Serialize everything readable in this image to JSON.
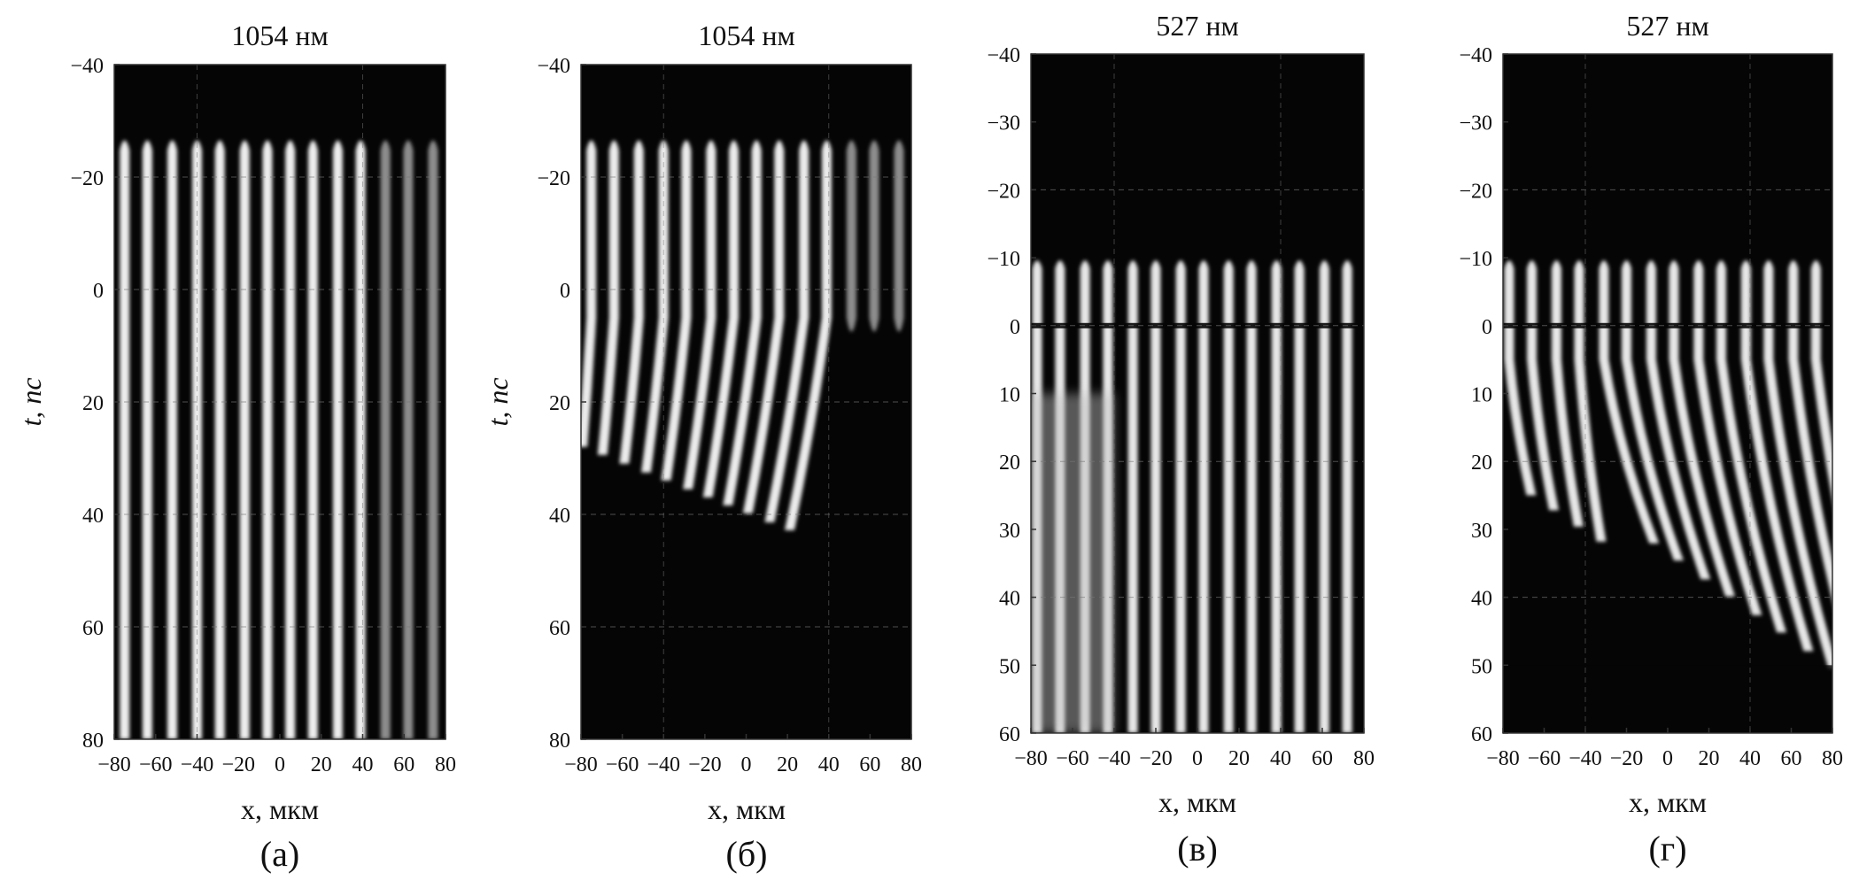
{
  "panels": [
    {
      "title": "1054 нм",
      "caption": "(а)",
      "ylabel": "t, пс",
      "xlabel": "x, мкм",
      "x_ticks": [
        -80,
        -60,
        -40,
        -20,
        0,
        20,
        40,
        60,
        80
      ],
      "y_ticks": [
        -40,
        -20,
        0,
        20,
        40,
        60,
        80
      ],
      "ylim": [
        -40,
        80
      ],
      "fringe_positions_um": [
        -75,
        -64,
        -52,
        -40,
        -29,
        -17,
        -6,
        5,
        16,
        28,
        39,
        51,
        62,
        74
      ],
      "fringe_onset_ps": -27,
      "fringe_end_ps": 80
    },
    {
      "title": "1054 нм",
      "caption": "(б)",
      "ylabel": "t, пс",
      "xlabel": "x, мкм",
      "x_ticks": [
        -80,
        -60,
        -40,
        -20,
        0,
        20,
        40,
        60,
        80
      ],
      "y_ticks": [
        -40,
        -20,
        0,
        20,
        40,
        60,
        80
      ],
      "ylim": [
        -40,
        80
      ],
      "fringe_positions_um": [
        -75,
        -64,
        -52,
        -40,
        -29,
        -17,
        -6,
        5,
        16,
        28,
        39,
        51,
        62,
        74
      ],
      "fringe_onset_ps": -27,
      "fringe_end_ps": 45
    },
    {
      "title": "527 нм",
      "caption": "(в)",
      "ylabel": "",
      "xlabel": "x, мкм",
      "x_ticks": [
        -80,
        -60,
        -40,
        -20,
        0,
        20,
        40,
        60,
        80
      ],
      "y_ticks": [
        -40,
        -30,
        -20,
        -10,
        0,
        10,
        20,
        30,
        40,
        50,
        60
      ],
      "ylim": [
        -40,
        60
      ],
      "fringe_positions_um": [
        -77,
        -66,
        -54,
        -43,
        -31,
        -20,
        -8,
        3,
        15,
        26,
        38,
        49,
        61,
        72
      ],
      "fringe_onset_ps": -10,
      "fringe_end_ps": 60
    },
    {
      "title": "527 нм",
      "caption": "(г)",
      "ylabel": "",
      "xlabel": "x, мкм",
      "x_ticks": [
        -80,
        -60,
        -40,
        -20,
        0,
        20,
        40,
        60,
        80
      ],
      "y_ticks": [
        -40,
        -30,
        -20,
        -10,
        0,
        10,
        20,
        30,
        40,
        50,
        60
      ],
      "ylim": [
        -40,
        60
      ],
      "fringe_positions_um": [
        -77,
        -66,
        -54,
        -43,
        -31,
        -20,
        -8,
        3,
        15,
        26,
        38,
        49,
        61,
        72
      ],
      "fringe_onset_ps": -10,
      "fringe_end_ps": 55
    }
  ]
}
